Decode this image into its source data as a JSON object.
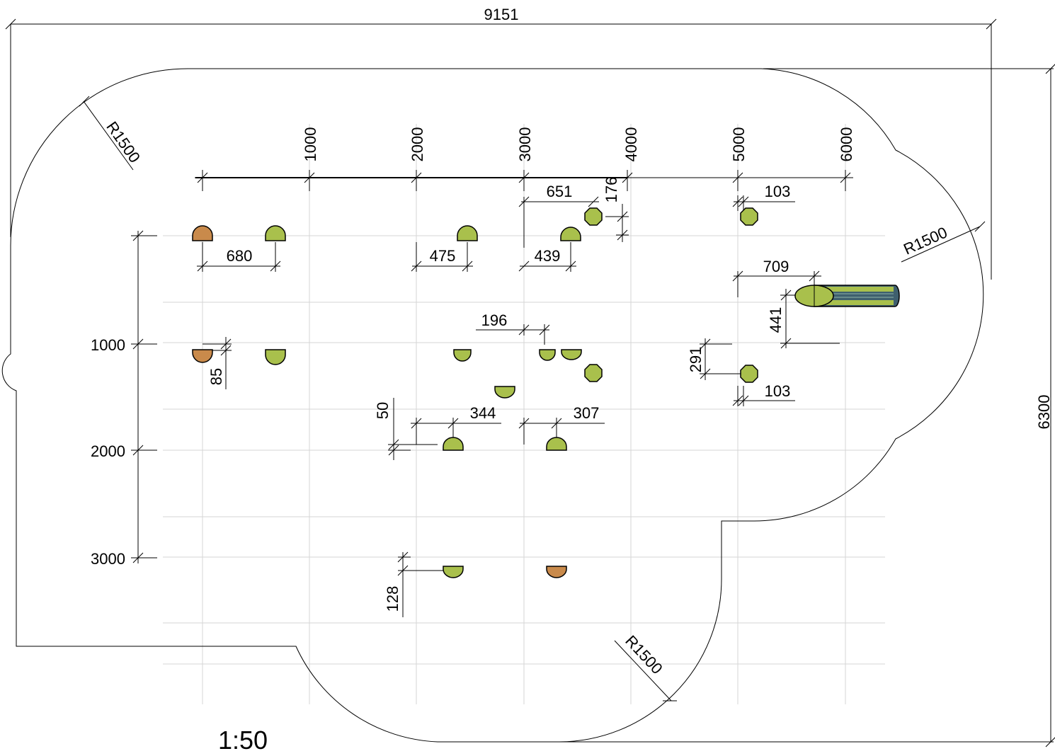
{
  "colors": {
    "green_fill": "#a9c04c",
    "orange_fill": "#c98a4b",
    "slide_dark": "#3f5f6e",
    "grid": "#d6d6d6",
    "line": "#000000"
  },
  "scale_label": "1:50",
  "overall_dims": {
    "width": "9151",
    "height": "6300"
  },
  "radius_labels": [
    "R1500",
    "R1500",
    "R1500"
  ],
  "x_axis_ticks": [
    "1000",
    "2000",
    "3000",
    "4000",
    "5000",
    "6000"
  ],
  "y_axis_ticks": [
    "1000",
    "2000",
    "3000"
  ],
  "dimension_labels": {
    "d651": "651",
    "d176": "176",
    "d103_top": "103",
    "d680": "680",
    "d475": "475",
    "d439": "439",
    "d709": "709",
    "d441": "441",
    "d196": "196",
    "d85": "85",
    "d291": "291",
    "d103_bottom": "103",
    "d50": "50",
    "d344": "344",
    "d307": "307",
    "d128": "128"
  },
  "icons": {
    "item_dome": "half-round-stepping-post-icon",
    "item_octagon": "octagonal-post-icon",
    "item_slide": "tube-slide-icon"
  }
}
